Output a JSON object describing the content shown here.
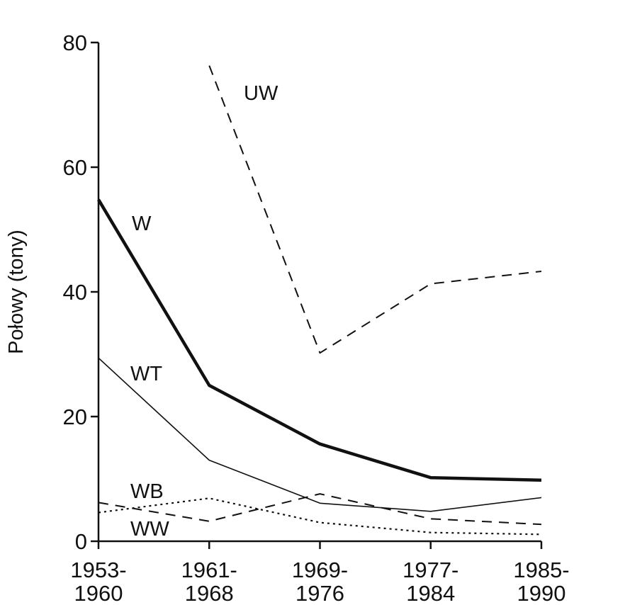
{
  "chart_data": {
    "type": "line",
    "title": "",
    "xlabel": "",
    "ylabel": "Połowy (tony)",
    "ylim": [
      0,
      80
    ],
    "yticks": [
      0,
      20,
      40,
      60,
      80
    ],
    "categories": [
      {
        "line1": "1953-",
        "line2": "1960"
      },
      {
        "line1": "1961-",
        "line2": "1968"
      },
      {
        "line1": "1969-",
        "line2": "1976"
      },
      {
        "line1": "1977-",
        "line2": "1984"
      },
      {
        "line1": "1985-",
        "line2": "1990"
      }
    ],
    "grid": false,
    "legend": "none (series labelled directly on lines)",
    "series": [
      {
        "name": "UW",
        "values": [
          null,
          76.3,
          30.2,
          41.3,
          43.3
        ],
        "style": "dashed",
        "color": "#111111"
      },
      {
        "name": "W",
        "values": [
          54.8,
          25.0,
          15.6,
          10.2,
          9.8
        ],
        "style": "bold",
        "color": "#111111"
      },
      {
        "name": "WT",
        "values": [
          29.4,
          13.0,
          6.1,
          4.8,
          7.0
        ],
        "style": "thin",
        "color": "#111111"
      },
      {
        "name": "WB",
        "values": [
          6.2,
          3.2,
          7.6,
          3.6,
          2.7
        ],
        "style": "dashed",
        "color": "#111111"
      },
      {
        "name": "WW",
        "values": [
          4.6,
          6.9,
          3.0,
          1.4,
          1.1
        ],
        "style": "dotted",
        "color": "#111111"
      }
    ]
  }
}
